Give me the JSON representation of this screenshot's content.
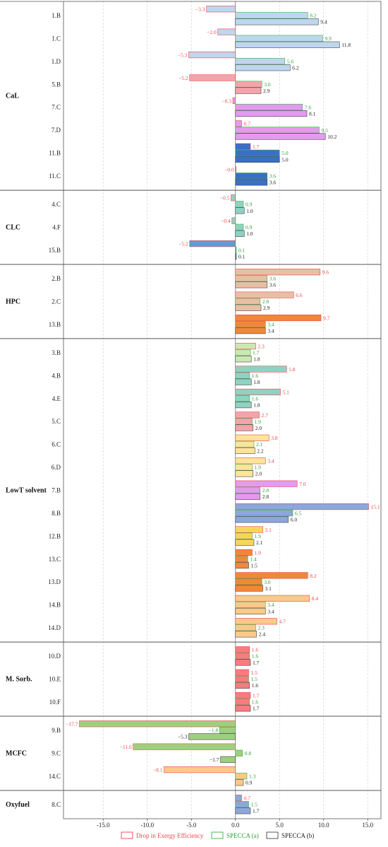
{
  "chart_data": {
    "type": "bar",
    "orientation": "horizontal",
    "xlim": [
      -19.5,
      16.5
    ],
    "x_ticks": [
      "-15.0",
      "-10.0",
      "-5.0",
      "0.0",
      "5.0",
      "10.0",
      "15.0"
    ],
    "x_tick_values": [
      -15,
      -10,
      -5,
      0,
      5,
      10,
      15
    ],
    "grid": "vertical dashed",
    "legend_placement": "bottom-center",
    "series": [
      {
        "name": "Drop in Exergy Efficiency",
        "edge_color": "#e8474b",
        "label_color": "#e8474b"
      },
      {
        "name": "SPECCA (a)",
        "edge_color": "#3fae49",
        "label_color": "#2e9e36"
      },
      {
        "name": "SPECCA (b)",
        "edge_color": "#444444",
        "label_color": "#222222"
      }
    ],
    "groups": [
      {
        "name": "CaL",
        "rows": [
          {
            "label": "1.B",
            "color": "#bdd7ee",
            "values": [
              -3.3,
              8.2,
              9.4
            ],
            "texts": [
              "−3.3",
              "8.2",
              "9.4"
            ]
          },
          {
            "label": "1.C",
            "color": "#bdd7ee",
            "values": [
              -2.0,
              9.9,
              11.8
            ],
            "texts": [
              "−2.0",
              "9.9",
              "11.8"
            ]
          },
          {
            "label": "1.D",
            "color": "#bdd7ee",
            "values": [
              -5.3,
              5.6,
              6.2
            ],
            "texts": [
              "−5.3",
              "5.6",
              "6.2"
            ]
          },
          {
            "label": "5.B",
            "color": "#f4a3ab",
            "values": [
              -5.2,
              3.0,
              2.9
            ],
            "texts": [
              "−5.2",
              "3.0",
              "2.9"
            ]
          },
          {
            "label": "7.C",
            "color": "#e39af0",
            "values": [
              -0.3,
              7.6,
              8.1
            ],
            "texts": [
              "−0.3",
              "7.6",
              "8.1"
            ]
          },
          {
            "label": "7.D",
            "color": "#e39af0",
            "values": [
              0.7,
              9.5,
              10.2
            ],
            "texts": [
              "0.7",
              "9.5",
              "10.2"
            ]
          },
          {
            "label": "11.B",
            "color": "#3a6fc6",
            "values": [
              1.7,
              5.0,
              5.0
            ],
            "texts": [
              "1.7",
              "5.0",
              "5.0"
            ]
          },
          {
            "label": "11.C",
            "color": "#3a6fc6",
            "values": [
              0.0,
              3.6,
              3.6
            ],
            "texts": [
              "−0.0",
              "3.6",
              "3.6"
            ]
          }
        ]
      },
      {
        "name": "CLC",
        "rows": [
          {
            "label": "4.C",
            "color": "#8fd2c4",
            "values": [
              -0.5,
              0.9,
              1.0
            ],
            "texts": [
              "−0.5",
              "0.9",
              "1.0"
            ]
          },
          {
            "label": "4.F",
            "color": "#8fd2c4",
            "values": [
              -0.4,
              0.9,
              1.0
            ],
            "texts": [
              "−0.4",
              "0.9",
              "1.0"
            ]
          },
          {
            "label": "15.B",
            "color": "#5a9fd4",
            "values": [
              -5.2,
              0.1,
              0.1
            ],
            "texts": [
              "−5.2",
              "0.1",
              "0.1"
            ]
          }
        ]
      },
      {
        "name": "HPC",
        "rows": [
          {
            "label": "2.B",
            "color": "#e8bfa5",
            "values": [
              9.6,
              3.6,
              3.6
            ],
            "texts": [
              "9.6",
              "3.6",
              "3.6"
            ]
          },
          {
            "label": "2.C",
            "color": "#e8bfa5",
            "values": [
              6.6,
              2.8,
              2.9
            ],
            "texts": [
              "6.6",
              "2.8",
              "2.9"
            ]
          },
          {
            "label": "13.B",
            "color": "#f0883a",
            "values": [
              9.7,
              3.4,
              3.4
            ],
            "texts": [
              "9.7",
              "3.4",
              "3.4"
            ]
          }
        ]
      },
      {
        "name": "LowT solvent",
        "rows": [
          {
            "label": "3.B",
            "color": "#cbe8b4",
            "values": [
              2.3,
              1.7,
              1.8
            ],
            "texts": [
              "2.3",
              "1.7",
              "1.8"
            ]
          },
          {
            "label": "4.B",
            "color": "#8fd2c4",
            "values": [
              5.8,
              1.6,
              1.8
            ],
            "texts": [
              "5.8",
              "1.6",
              "1.8"
            ]
          },
          {
            "label": "4.E",
            "color": "#8fd2c4",
            "values": [
              5.1,
              1.6,
              1.8
            ],
            "texts": [
              "5.1",
              "1.6",
              "1.8"
            ]
          },
          {
            "label": "5.C",
            "color": "#f4a3ab",
            "values": [
              2.7,
              1.9,
              2.0
            ],
            "texts": [
              "2.7",
              "1.9",
              "2.0"
            ]
          },
          {
            "label": "6.C",
            "color": "#fde49a",
            "values": [
              3.8,
              2.1,
              2.2
            ],
            "texts": [
              "3.8",
              "2.1",
              "2.2"
            ]
          },
          {
            "label": "6.D",
            "color": "#fde49a",
            "values": [
              3.4,
              1.9,
              2.0
            ],
            "texts": [
              "3.4",
              "1.9",
              "2.0"
            ]
          },
          {
            "label": "7.B",
            "color": "#e39af0",
            "values": [
              7.0,
              2.8,
              2.8
            ],
            "texts": [
              "7.0",
              "2.8",
              "2.8"
            ]
          },
          {
            "label": "8.B",
            "color": "#8da6db",
            "values": [
              15.1,
              6.5,
              6.0
            ],
            "texts": [
              "15.1",
              "6.5",
              "6.0"
            ]
          },
          {
            "label": "12.B",
            "color": "#f8d55a",
            "values": [
              3.1,
              1.9,
              2.1
            ],
            "texts": [
              "3.1",
              "1.9",
              "2.1"
            ]
          },
          {
            "label": "13.C",
            "color": "#f0883a",
            "values": [
              1.9,
              1.4,
              1.5
            ],
            "texts": [
              "1.9",
              "1.4",
              "1.5"
            ]
          },
          {
            "label": "13.D",
            "color": "#f0883a",
            "values": [
              8.2,
              3.0,
              3.1
            ],
            "texts": [
              "8.2",
              "3.0",
              "3.1"
            ]
          },
          {
            "label": "14.B",
            "color": "#fbc98a",
            "values": [
              8.4,
              3.4,
              3.4
            ],
            "texts": [
              "8.4",
              "3.4",
              "3.4"
            ]
          },
          {
            "label": "14.D",
            "color": "#fbc98a",
            "values": [
              4.7,
              2.3,
              2.4
            ],
            "texts": [
              "4.7",
              "2.3",
              "2.4"
            ]
          }
        ]
      },
      {
        "name": "M. Sorb.",
        "rows": [
          {
            "label": "10.D",
            "color": "#f77b7f",
            "values": [
              1.6,
              1.6,
              1.7
            ],
            "texts": [
              "1.6",
              "1.6",
              "1.7"
            ]
          },
          {
            "label": "10.E",
            "color": "#f77b7f",
            "values": [
              1.5,
              1.5,
              1.6
            ],
            "texts": [
              "1.5",
              "1.5",
              "1.6"
            ]
          },
          {
            "label": "10.F",
            "color": "#f77b7f",
            "values": [
              1.7,
              1.6,
              1.7
            ],
            "texts": [
              "1.7",
              "1.6",
              "1.7"
            ]
          }
        ]
      },
      {
        "name": "MCFC",
        "rows": [
          {
            "label": "9.B",
            "color": "#9fcf7e",
            "values": [
              -17.7,
              -1.8,
              -5.3
            ],
            "texts": [
              "−17.7",
              "−1.8",
              "−5.3"
            ]
          },
          {
            "label": "9.C",
            "color": "#9fcf7e",
            "values": [
              -11.6,
              0.8,
              -1.7
            ],
            "texts": [
              "−11.6",
              "0.8",
              "−1.7"
            ]
          },
          {
            "label": "14.C",
            "color": "#fbc98a",
            "values": [
              -8.1,
              1.3,
              0.9
            ],
            "texts": [
              "−8.1",
              "1.3",
              "0.9"
            ]
          }
        ]
      },
      {
        "name": "Oxyfuel",
        "rows": [
          {
            "label": "8.C",
            "color": "#8da6db",
            "values": [
              0.7,
              1.5,
              1.7
            ],
            "texts": [
              "0.7",
              "1.5",
              "1.7"
            ]
          }
        ]
      }
    ]
  }
}
